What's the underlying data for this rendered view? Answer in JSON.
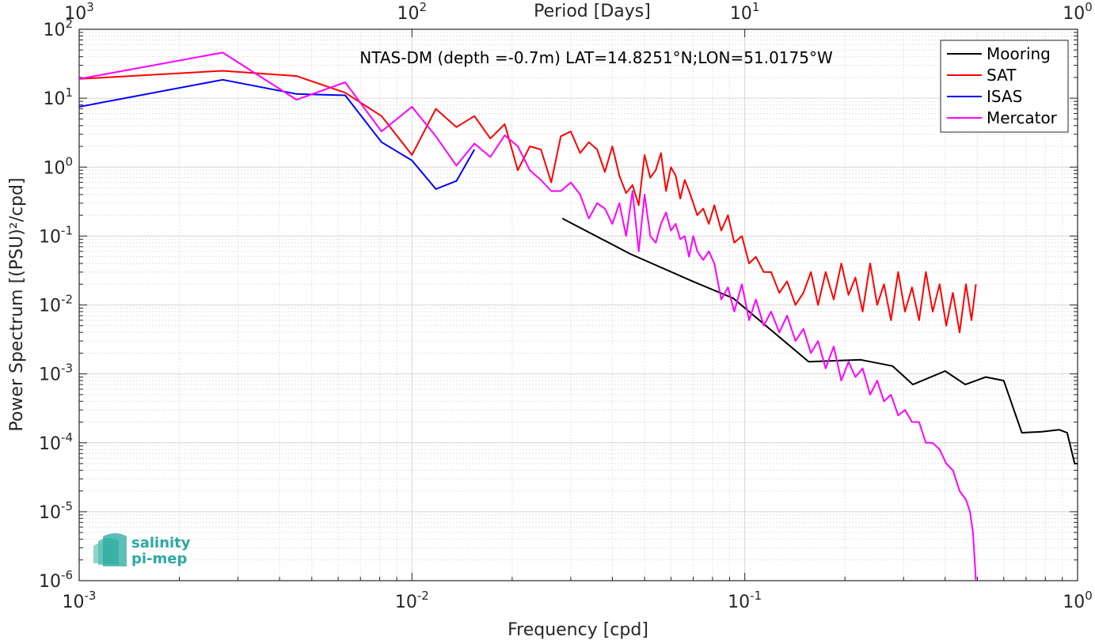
{
  "chart_data": {
    "type": "line",
    "title": "NTAS-DM (depth =-0.7m) LAT=14.8251°N;LON=51.0175°W",
    "xlabel": "Frequency [cpd]",
    "ylabel": "Power Spectrum [(PSU)²/cpd]",
    "top_xlabel": "Period [Days]",
    "x_scale": "log",
    "y_scale": "log",
    "xlim": [
      0.001,
      1
    ],
    "ylim": [
      1e-06,
      100
    ],
    "grid": true,
    "legend_position": "top-right",
    "x_ticks": [
      {
        "base": "10",
        "exp": "-3"
      },
      {
        "base": "10",
        "exp": "-2"
      },
      {
        "base": "10",
        "exp": "-1"
      },
      {
        "base": "10",
        "exp": "0"
      }
    ],
    "top_ticks": [
      {
        "base": "10",
        "exp": "3"
      },
      {
        "base": "10",
        "exp": "2"
      },
      {
        "base": "10",
        "exp": "1"
      },
      {
        "base": "10",
        "exp": "0"
      }
    ],
    "y_ticks": [
      {
        "text": "10",
        "exp": "2"
      },
      {
        "text": "10",
        "exp": "1"
      },
      {
        "text": "10",
        "exp": "0"
      },
      {
        "text": "10",
        "exp": "-1"
      },
      {
        "text": "10",
        "exp": "-2"
      },
      {
        "text": "10",
        "exp": "-3"
      },
      {
        "text": "10",
        "exp": "-4"
      },
      {
        "text": "10",
        "exp": "-5"
      },
      {
        "text": "10",
        "exp": "-6"
      }
    ],
    "series": [
      {
        "name": "Mooring",
        "color": "#000000",
        "x": [
          0.0283,
          0.0453,
          0.0698,
          0.0924,
          0.1556,
          0.223,
          0.278,
          0.32,
          0.4,
          0.46,
          0.53,
          0.6,
          0.68,
          0.78,
          0.88,
          0.93,
          0.98,
          1.0
        ],
        "y": [
          0.18,
          0.055,
          0.022,
          0.0125,
          0.0015,
          0.0016,
          0.0013,
          0.0007,
          0.0011,
          0.0007,
          0.0009,
          0.0008,
          0.00014,
          0.000145,
          0.000155,
          0.00014,
          5e-05,
          5e-05
        ]
      },
      {
        "name": "SAT",
        "color": "#ff0000",
        "x": [
          0.001,
          0.0027,
          0.0045,
          0.0063,
          0.0081,
          0.01,
          0.0118,
          0.0136,
          0.0154,
          0.0172,
          0.019,
          0.0208,
          0.0226,
          0.0244,
          0.0262,
          0.028,
          0.03,
          0.032,
          0.034,
          0.036,
          0.038,
          0.04,
          0.042,
          0.044,
          0.046,
          0.048,
          0.05,
          0.052,
          0.054,
          0.056,
          0.058,
          0.06,
          0.062,
          0.064,
          0.066,
          0.068,
          0.07,
          0.072,
          0.075,
          0.078,
          0.081,
          0.085,
          0.089,
          0.093,
          0.098,
          0.103,
          0.108,
          0.114,
          0.12,
          0.127,
          0.134,
          0.142,
          0.15,
          0.158,
          0.166,
          0.175,
          0.185,
          0.195,
          0.205,
          0.215,
          0.226,
          0.238,
          0.25,
          0.262,
          0.275,
          0.289,
          0.303,
          0.318,
          0.334,
          0.35,
          0.367,
          0.385,
          0.403,
          0.422,
          0.442,
          0.462,
          0.48,
          0.495
        ],
        "y": [
          19,
          25,
          21,
          12,
          5.5,
          1.5,
          7,
          3.8,
          5.5,
          2.6,
          4.2,
          0.9,
          2.0,
          1.8,
          0.6,
          2.8,
          3.3,
          1.6,
          2.3,
          1.8,
          0.85,
          2.0,
          0.75,
          0.42,
          0.55,
          0.28,
          1.5,
          0.7,
          0.9,
          1.6,
          0.45,
          1.0,
          0.75,
          0.35,
          0.65,
          0.45,
          0.3,
          0.2,
          0.25,
          0.15,
          0.28,
          0.12,
          0.2,
          0.08,
          0.1,
          0.04,
          0.05,
          0.03,
          0.03,
          0.015,
          0.022,
          0.01,
          0.015,
          0.03,
          0.01,
          0.03,
          0.012,
          0.04,
          0.014,
          0.025,
          0.008,
          0.04,
          0.01,
          0.02,
          0.006,
          0.03,
          0.008,
          0.018,
          0.006,
          0.03,
          0.008,
          0.02,
          0.005,
          0.015,
          0.004,
          0.02,
          0.006,
          0.02
        ]
      },
      {
        "name": "ISAS",
        "color": "#0000ff",
        "x": [
          0.001,
          0.0027,
          0.0045,
          0.0063,
          0.0081,
          0.01,
          0.0118,
          0.0136,
          0.0154
        ],
        "y": [
          7.5,
          18.5,
          11.5,
          11,
          2.3,
          1.25,
          0.48,
          0.63,
          1.8
        ]
      },
      {
        "name": "Mercator",
        "color": "#ff00ff",
        "x": [
          0.001,
          0.0027,
          0.0045,
          0.0063,
          0.0081,
          0.01,
          0.0118,
          0.0136,
          0.0154,
          0.0172,
          0.019,
          0.0208,
          0.0226,
          0.0244,
          0.0262,
          0.028,
          0.03,
          0.032,
          0.034,
          0.036,
          0.038,
          0.04,
          0.042,
          0.044,
          0.046,
          0.048,
          0.05,
          0.052,
          0.054,
          0.056,
          0.058,
          0.06,
          0.062,
          0.064,
          0.066,
          0.068,
          0.07,
          0.072,
          0.075,
          0.078,
          0.081,
          0.085,
          0.089,
          0.093,
          0.098,
          0.103,
          0.108,
          0.114,
          0.12,
          0.127,
          0.134,
          0.142,
          0.15,
          0.158,
          0.166,
          0.175,
          0.185,
          0.195,
          0.205,
          0.215,
          0.226,
          0.238,
          0.25,
          0.262,
          0.275,
          0.289,
          0.303,
          0.318,
          0.334,
          0.35,
          0.367,
          0.385,
          0.403,
          0.422,
          0.442,
          0.462,
          0.475,
          0.485,
          0.495
        ],
        "y": [
          19,
          46,
          9.5,
          17,
          3.3,
          7.5,
          2.8,
          1.05,
          2.2,
          1.4,
          2.9,
          2.0,
          0.9,
          0.65,
          0.45,
          0.45,
          0.6,
          0.4,
          0.18,
          0.3,
          0.25,
          0.15,
          0.3,
          0.1,
          0.45,
          0.06,
          0.4,
          0.1,
          0.08,
          0.15,
          0.22,
          0.12,
          0.15,
          0.09,
          0.1,
          0.05,
          0.1,
          0.06,
          0.045,
          0.06,
          0.04,
          0.012,
          0.018,
          0.008,
          0.02,
          0.006,
          0.012,
          0.005,
          0.008,
          0.004,
          0.007,
          0.003,
          0.0045,
          0.002,
          0.003,
          0.0012,
          0.0025,
          0.0008,
          0.0015,
          0.0009,
          0.0012,
          0.0005,
          0.0008,
          0.0004,
          0.0005,
          0.00025,
          0.0003,
          0.0002,
          0.0002,
          0.0001,
          0.0001,
          8e-05,
          5e-05,
          4e-05,
          2e-05,
          1.5e-05,
          1e-05,
          5e-06,
          1e-06
        ]
      }
    ]
  },
  "logo": {
    "line1": "salinity",
    "line2": "pi-mep",
    "color": "#2aa9a0"
  }
}
